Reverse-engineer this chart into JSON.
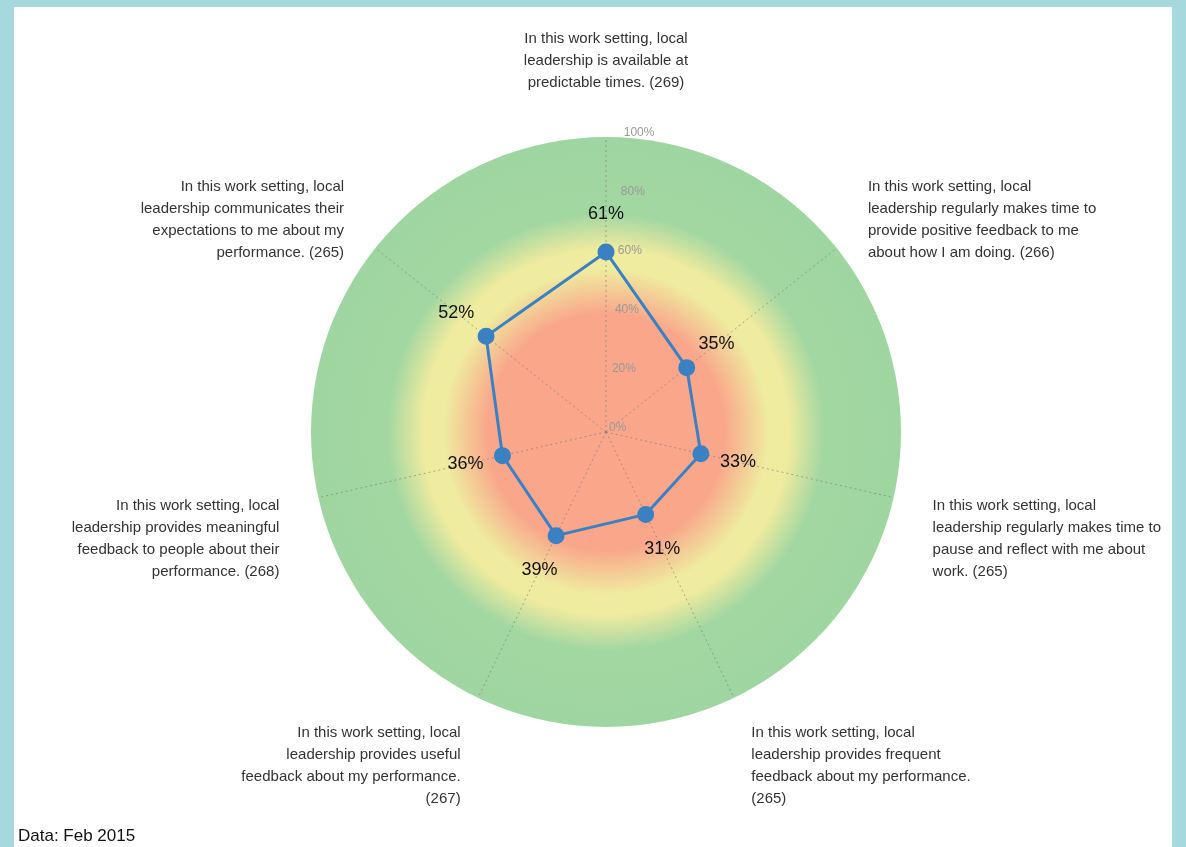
{
  "chart_data": {
    "type": "radar",
    "categories": [
      "In this work setting, local leadership is available at predictable times. (269)",
      "In this work setting, local leadership regularly makes time to provide positive feedback to me about how I am doing. (266)",
      "In this work setting, local leadership regularly makes time to pause and reflect with me about work. (265)",
      "In this work setting, local leadership provides frequent feedback about my performance. (265)",
      "In this work setting, local leadership provides useful feedback about my performance. (267)",
      "In this work setting, local leadership provides meaningful feedback to people about their performance. (268)",
      "In this work setting, local leadership communicates their expectations to me about my performance. (265)"
    ],
    "series": [
      {
        "color": "#3a81c3",
        "values": [
          61,
          35,
          33,
          31,
          39,
          36,
          52
        ],
        "value_labels": [
          "61%",
          "35%",
          "33%",
          "31%",
          "39%",
          "36%",
          "52%"
        ]
      }
    ],
    "ylim": [
      0,
      100
    ],
    "yticks": [
      {
        "value": 0,
        "label": "0%"
      },
      {
        "value": 20,
        "label": "20%"
      },
      {
        "value": 40,
        "label": "40%"
      },
      {
        "value": 60,
        "label": "60%"
      },
      {
        "value": 80,
        "label": "80%"
      },
      {
        "value": 100,
        "label": "100%"
      }
    ],
    "grid": "x",
    "marker": "circle",
    "line_style": "solid",
    "annotations": [
      "Data: Feb 2015"
    ]
  }
}
